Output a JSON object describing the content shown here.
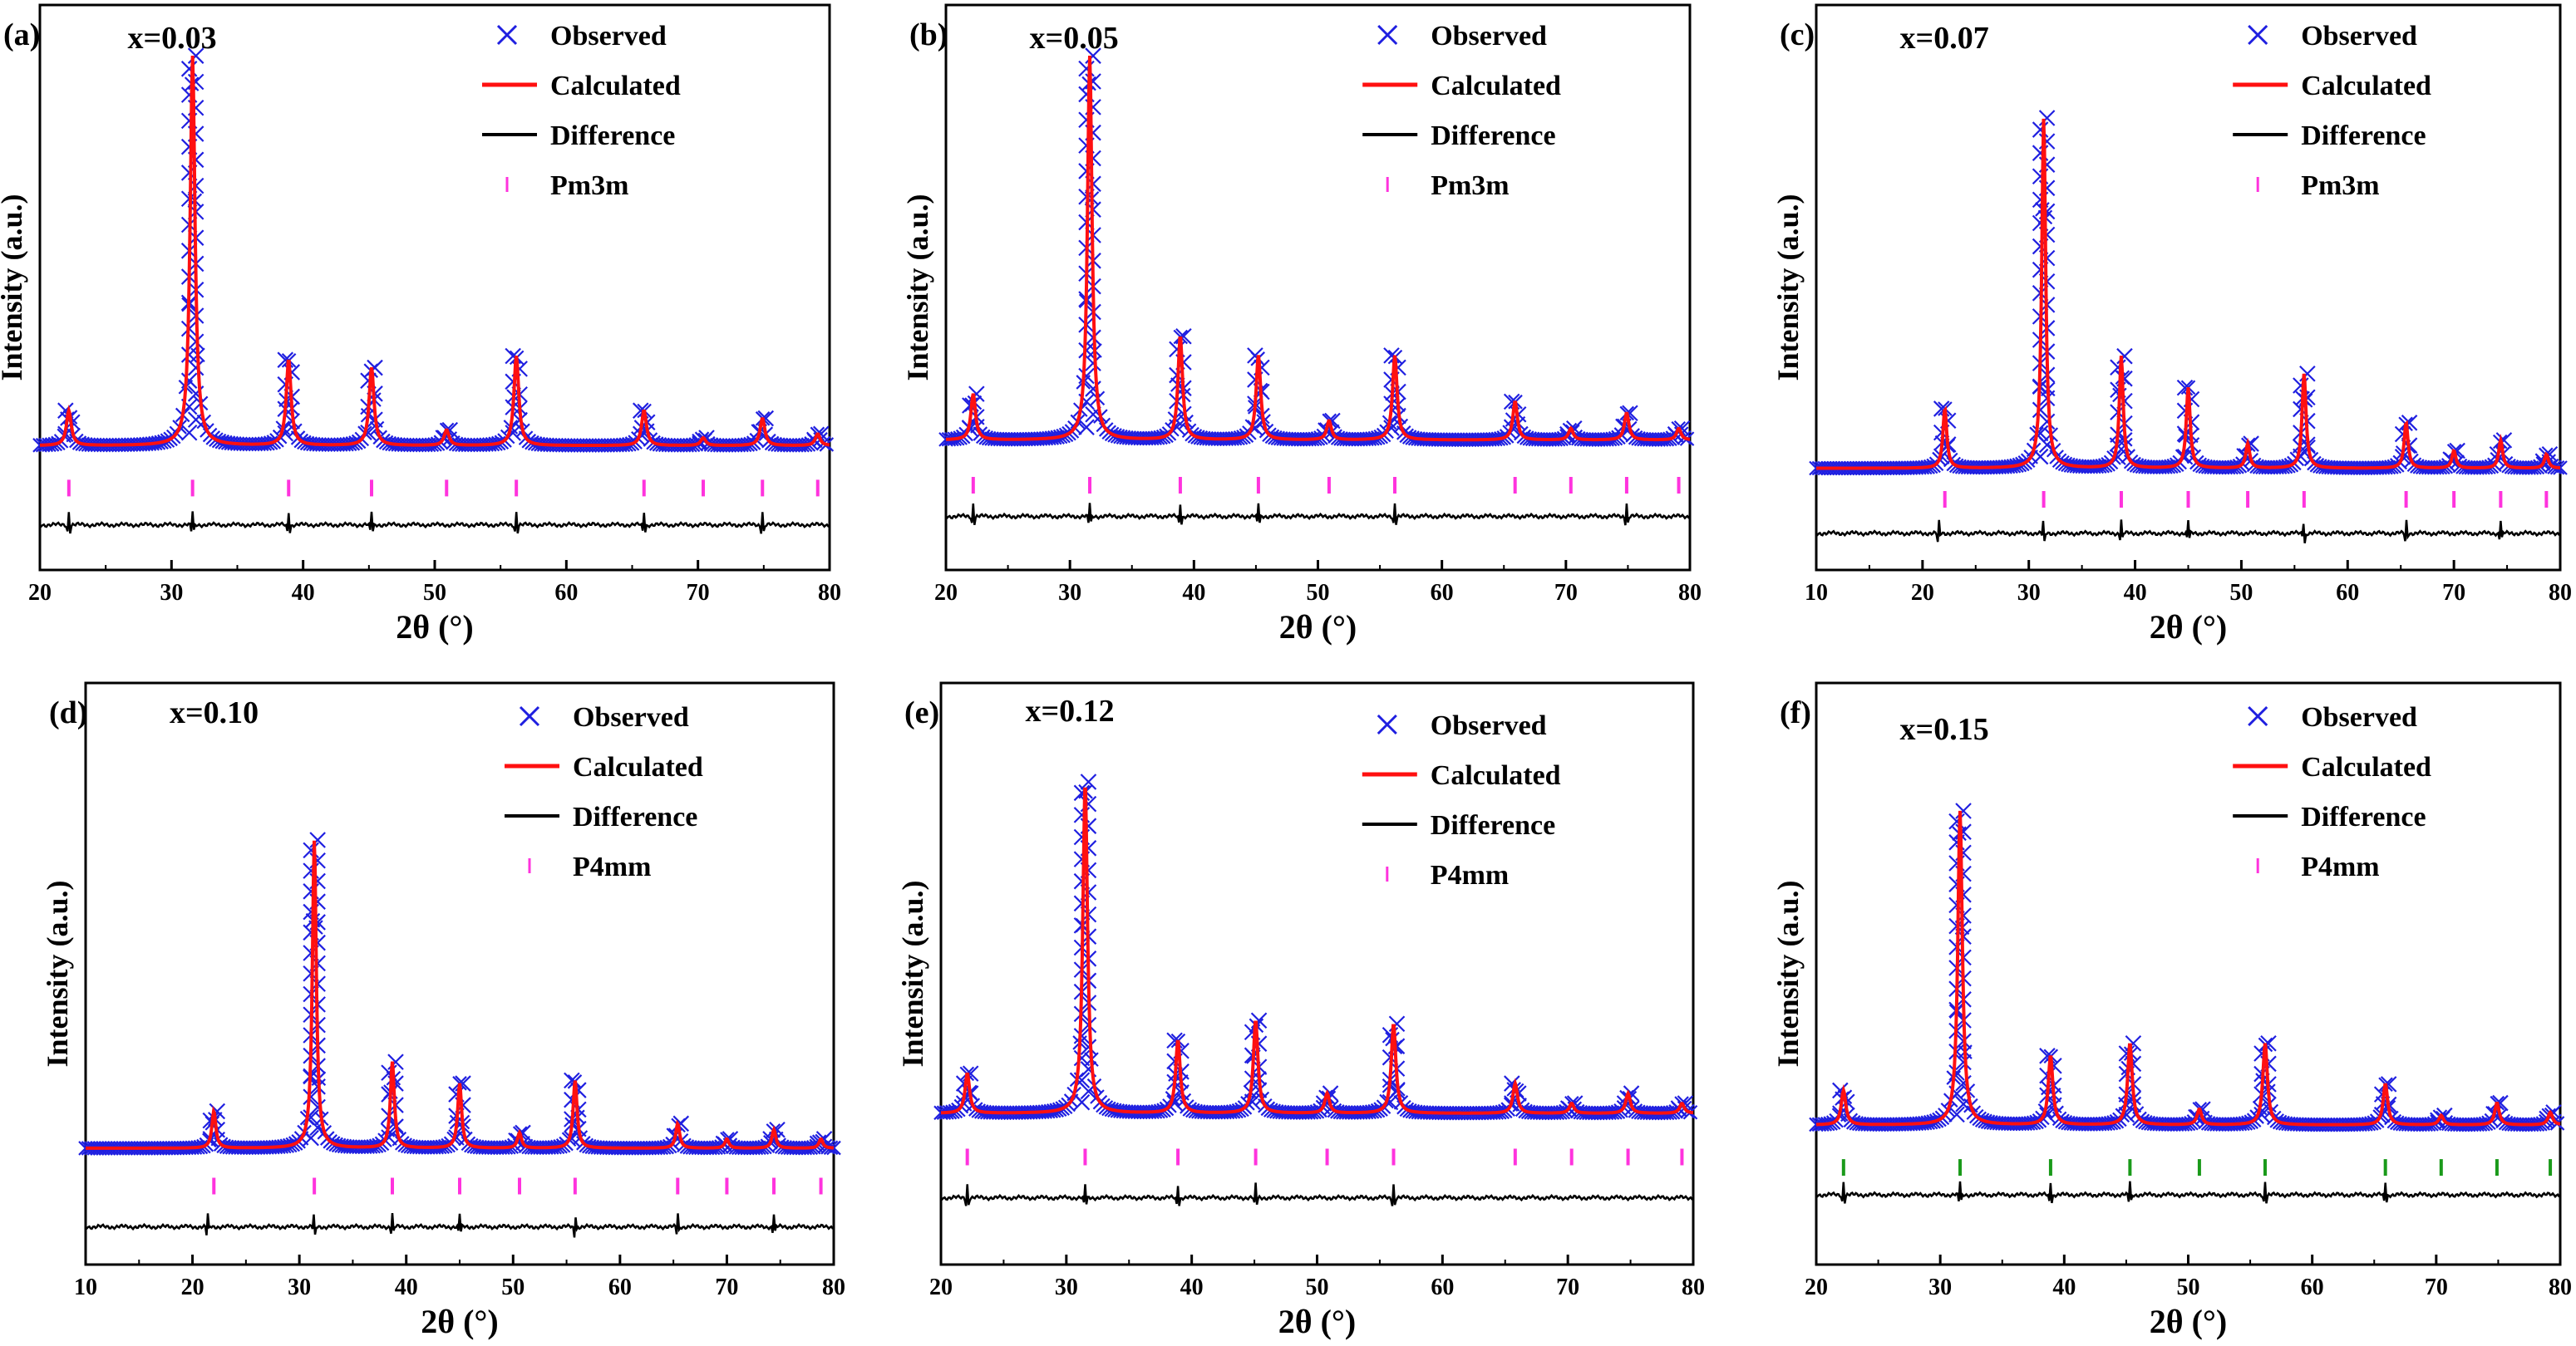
{
  "figure": {
    "background": "#ffffff"
  },
  "colors": {
    "observed": "#1f1fe0",
    "calculated": "#ff1010",
    "difference": "#000000",
    "tick_magenta": "#ff33dd",
    "tick_green": "#1a9a1a"
  },
  "legend_labels": {
    "observed": "Observed",
    "calculated": "Calculated",
    "difference": "Difference"
  },
  "chart_data": [
    {
      "id": "a",
      "panel_label": "(a)",
      "composition": "x=0.03",
      "type": "line",
      "phase": "Pm3m",
      "xlabel": "2θ (°)",
      "ylabel": "Intensity (a.u.)",
      "xlim": [
        20,
        80
      ],
      "xticks": [
        "20",
        "30",
        "40",
        "50",
        "60",
        "70",
        "80"
      ],
      "peaks": [
        22.2,
        31.6,
        38.9,
        45.2,
        50.9,
        56.2,
        65.9,
        70.4,
        74.9,
        79.1
      ],
      "peak_heights": [
        0.09,
        1.0,
        0.22,
        0.2,
        0.04,
        0.23,
        0.09,
        0.02,
        0.07,
        0.03
      ],
      "bragg_ticks": [
        22.2,
        31.6,
        38.9,
        45.2,
        50.9,
        56.2,
        65.9,
        70.4,
        74.9,
        79.1
      ],
      "bragg_color": "tick_magenta",
      "diff_spikes": [
        22.2,
        31.6,
        38.9,
        45.2,
        56.2,
        65.9,
        74.9
      ]
    },
    {
      "id": "b",
      "panel_label": "(b)",
      "composition": "x=0.05",
      "type": "line",
      "phase": "Pm3m",
      "xlabel": "2θ (°)",
      "ylabel": "Intensity (a.u.)",
      "xlim": [
        20,
        80
      ],
      "xticks": [
        "20",
        "30",
        "40",
        "50",
        "60",
        "70",
        "80"
      ],
      "peaks": [
        22.2,
        31.6,
        38.9,
        45.2,
        50.9,
        56.2,
        65.9,
        70.4,
        74.9,
        79.1
      ],
      "peak_heights": [
        0.12,
        1.0,
        0.27,
        0.22,
        0.05,
        0.22,
        0.1,
        0.03,
        0.07,
        0.03
      ],
      "bragg_ticks": [
        22.2,
        31.6,
        38.9,
        45.2,
        50.9,
        56.2,
        65.9,
        70.4,
        74.9,
        79.1
      ],
      "bragg_color": "tick_magenta",
      "diff_spikes": [
        22.2,
        31.6,
        38.9,
        45.2,
        56.2,
        74.9
      ]
    },
    {
      "id": "c",
      "panel_label": "(c)",
      "composition": "x=0.07",
      "type": "line",
      "phase": "Pm3m",
      "xlabel": "2θ (°)",
      "ylabel": "Intensity (a.u.)",
      "xlim": [
        10,
        80
      ],
      "xticks": [
        "10",
        "20",
        "30",
        "40",
        "50",
        "60",
        "70",
        "80"
      ],
      "peaks": [
        22.1,
        31.4,
        38.7,
        45.0,
        50.6,
        55.9,
        65.5,
        70.0,
        74.4,
        78.7
      ],
      "peak_heights": [
        0.17,
        1.0,
        0.32,
        0.23,
        0.07,
        0.27,
        0.13,
        0.05,
        0.08,
        0.04
      ],
      "bragg_ticks": [
        22.1,
        31.4,
        38.7,
        45.0,
        50.6,
        55.9,
        65.5,
        70.0,
        74.4,
        78.7
      ],
      "bragg_color": "tick_magenta",
      "diff_spikes": [
        21.5,
        31.4,
        38.7,
        45.0,
        55.9,
        65.5,
        74.4
      ]
    },
    {
      "id": "d",
      "panel_label": "(d)",
      "composition": "x=0.10",
      "type": "line",
      "phase": "P4mm",
      "xlabel": "2θ (°)",
      "ylabel": "Intensity (a.u.)",
      "xlim": [
        10,
        80
      ],
      "xticks": [
        "10",
        "20",
        "30",
        "40",
        "50",
        "60",
        "70",
        "80"
      ],
      "peaks": [
        22.0,
        31.4,
        38.7,
        45.0,
        50.6,
        55.8,
        65.4,
        70.0,
        74.4,
        78.8
      ],
      "peak_heights": [
        0.12,
        1.0,
        0.28,
        0.21,
        0.05,
        0.22,
        0.08,
        0.03,
        0.06,
        0.03
      ],
      "bragg_ticks": [
        22.0,
        31.4,
        38.7,
        45.0,
        50.6,
        55.8,
        65.4,
        70.0,
        74.4,
        78.8
      ],
      "bragg_color": "tick_magenta",
      "diff_spikes": [
        21.4,
        31.4,
        38.7,
        45.0,
        55.8,
        65.4,
        74.4
      ]
    },
    {
      "id": "e",
      "panel_label": "(e)",
      "composition": "x=0.12",
      "type": "line",
      "phase": "P4mm",
      "xlabel": "2θ (°)",
      "ylabel": "Intensity (a.u.)",
      "xlim": [
        20,
        80
      ],
      "xticks": [
        "20",
        "30",
        "40",
        "50",
        "60",
        "70",
        "80"
      ],
      "peaks": [
        22.1,
        31.5,
        38.9,
        45.1,
        50.8,
        56.1,
        65.8,
        70.3,
        74.8,
        79.1
      ],
      "peak_heights": [
        0.12,
        1.0,
        0.22,
        0.28,
        0.06,
        0.27,
        0.09,
        0.03,
        0.06,
        0.03
      ],
      "bragg_ticks": [
        22.1,
        31.5,
        38.9,
        45.1,
        50.8,
        56.1,
        65.8,
        70.3,
        74.8,
        79.1
      ],
      "bragg_color": "tick_magenta",
      "diff_spikes": [
        22.1,
        31.5,
        38.9,
        45.1,
        56.1
      ]
    },
    {
      "id": "f",
      "panel_label": "(f)",
      "composition": "x=0.15",
      "type": "line",
      "phase": "P4mm",
      "xlabel": "2θ (°)",
      "ylabel": "Intensity (a.u.)",
      "xlim": [
        20,
        80
      ],
      "xticks": [
        "20",
        "30",
        "40",
        "50",
        "60",
        "70",
        "80"
      ],
      "peaks": [
        22.2,
        31.6,
        38.9,
        45.3,
        50.9,
        56.2,
        65.9,
        70.4,
        74.9,
        79.2
      ],
      "peak_heights": [
        0.11,
        1.0,
        0.22,
        0.26,
        0.05,
        0.26,
        0.13,
        0.03,
        0.07,
        0.04
      ],
      "bragg_ticks": [
        22.2,
        31.6,
        38.9,
        45.3,
        50.9,
        56.2,
        65.9,
        70.4,
        74.9,
        79.2
      ],
      "bragg_color": "tick_green",
      "diff_spikes": [
        22.2,
        31.6,
        38.9,
        45.3,
        56.2,
        65.9
      ]
    }
  ]
}
